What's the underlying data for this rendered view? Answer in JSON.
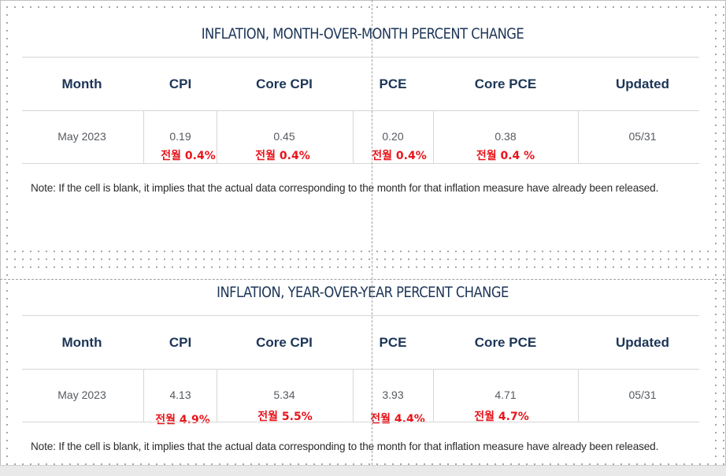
{
  "tables": [
    {
      "title": "INFLATION, MONTH-OVER-MONTH PERCENT CHANGE",
      "headers": [
        "Month",
        "CPI",
        "Core CPI",
        "PCE",
        "Core PCE",
        "Updated"
      ],
      "row": [
        "May 2023",
        "0.19",
        "0.45",
        "0.20",
        "0.38",
        "05/31"
      ],
      "annotations": [
        "전월 0.4%",
        "전월 0.4%",
        "전월 0.4%",
        "전월 0.4 %"
      ],
      "note": "Note: If the cell is blank, it implies that the actual data corresponding to the month for that inflation measure have already been released."
    },
    {
      "title": "INFLATION, YEAR-OVER-YEAR PERCENT CHANGE",
      "headers": [
        "Month",
        "CPI",
        "Core CPI",
        "PCE",
        "Core PCE",
        "Updated"
      ],
      "row": [
        "May 2023",
        "4.13",
        "5.34",
        "3.93",
        "4.71",
        "05/31"
      ],
      "annotations": [
        "전월 4.9%",
        "전월 5.5%",
        "전월 4.4%",
        "전월 4.7%"
      ],
      "note": "Note: If the cell is blank, it implies that the actual data corresponding to the month for that inflation measure have already been released."
    }
  ],
  "colors": {
    "title": "#1c3557",
    "annotation": "#e8141b",
    "body_text": "#555a60"
  }
}
